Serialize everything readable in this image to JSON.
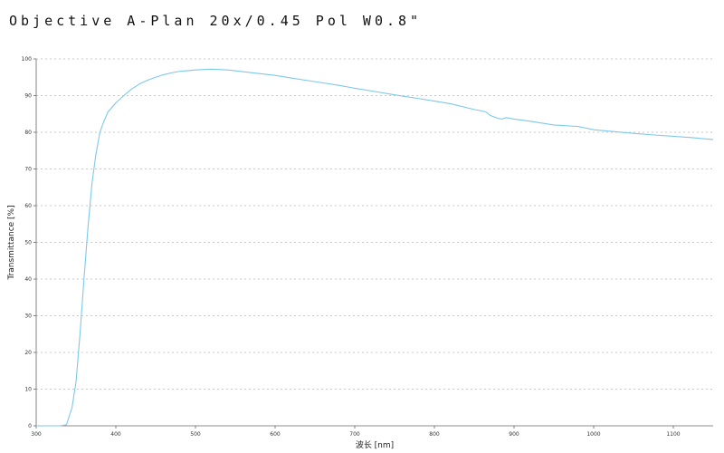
{
  "chart_data": {
    "type": "line",
    "title": "Objective A-Plan 20x/0.45 Pol W0.8\"",
    "xlabel": "波长 [nm]",
    "ylabel": "Transmittance [%]",
    "xlim": [
      300,
      1150
    ],
    "ylim": [
      0,
      100
    ],
    "x_ticks": [
      300,
      400,
      500,
      600,
      700,
      800,
      900,
      1000,
      1100
    ],
    "y_ticks": [
      0,
      10,
      20,
      30,
      40,
      50,
      60,
      70,
      80,
      90,
      100
    ],
    "grid": true,
    "series": [
      {
        "color": "#7ec8ea",
        "x": [
          300,
          330,
          338,
          345,
          350,
          355,
          360,
          365,
          370,
          375,
          380,
          385,
          390,
          400,
          410,
          420,
          430,
          440,
          450,
          460,
          470,
          480,
          500,
          520,
          540,
          560,
          580,
          600,
          620,
          650,
          680,
          700,
          720,
          750,
          780,
          800,
          820,
          850,
          860,
          865,
          870,
          875,
          880,
          885,
          890,
          900,
          920,
          950,
          980,
          1000,
          1020,
          1050,
          1080,
          1100,
          1120,
          1150
        ],
        "y": [
          0,
          0,
          0.3,
          5,
          12,
          25,
          40,
          54,
          66,
          74,
          80,
          83,
          85.5,
          88,
          90,
          91.8,
          93.2,
          94.2,
          95,
          95.7,
          96.2,
          96.6,
          97,
          97.2,
          97,
          96.5,
          96,
          95.5,
          94.8,
          93.8,
          92.8,
          92,
          91.3,
          90.2,
          89.2,
          88.5,
          87.8,
          86.2,
          85.8,
          85.5,
          84.6,
          84.2,
          83.8,
          83.6,
          84,
          83.6,
          83,
          82,
          81.6,
          80.7,
          80.3,
          79.7,
          79.2,
          78.9,
          78.6,
          78
        ]
      }
    ]
  }
}
